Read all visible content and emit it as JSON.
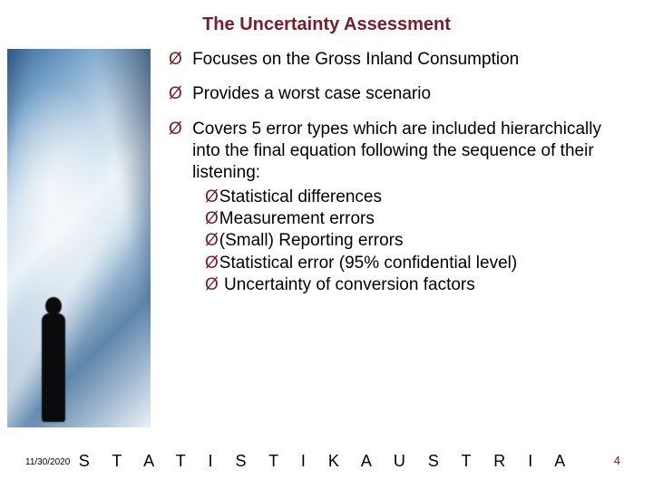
{
  "colors": {
    "title_color": "#7a1c2a",
    "arrow_color": "#7a1c2a",
    "body_text": "#000000",
    "footer_text": "#000000",
    "pagenum_color": "#7a1c2a"
  },
  "title": "The Uncertainty Assessment",
  "bullets": [
    {
      "text": "Focuses on the Gross Inland Consumption"
    },
    {
      "text": "Provides a worst case scenario"
    },
    {
      "text": "Covers 5 error types which are included hierarchically into the final equation following the sequence of their listening:",
      "sub": [
        "Statistical differences",
        "Measurement errors",
        "(Small) Reporting errors",
        "Statistical error (95% confidential level)",
        " Uncertainty of conversion factors"
      ]
    }
  ],
  "date": "11/30/2020",
  "footer": "S T A T I S T I K   A U S T R I A",
  "page_number": "4",
  "arrow_glyph": "Ø"
}
